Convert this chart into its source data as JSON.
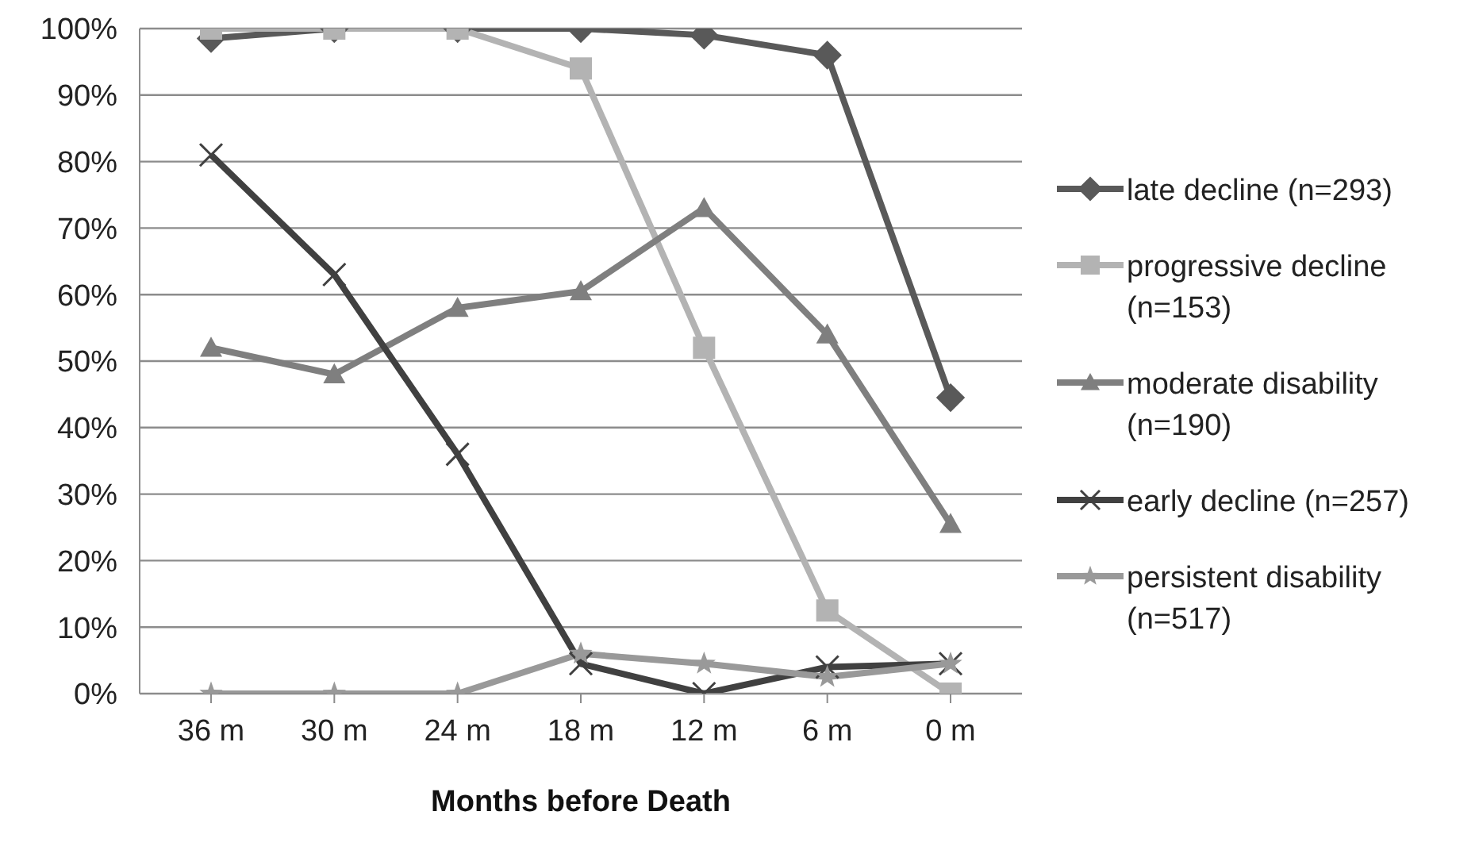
{
  "chart_data": {
    "type": "line",
    "xlabel": "Months before Death",
    "categories": [
      "36 m",
      "30 m",
      "24 m",
      "18 m",
      "12 m",
      "6 m",
      "0 m"
    ],
    "series": [
      {
        "name": "late decline (n=293)",
        "color": "#595959",
        "marker": "diamond",
        "values": [
          98.5,
          100,
          100,
          100,
          99,
          96,
          44.5
        ]
      },
      {
        "name": "progressive decline (n=153)",
        "color": "#b3b3b3",
        "marker": "square",
        "values": [
          100,
          100,
          100,
          94,
          52,
          12.5,
          0
        ]
      },
      {
        "name": "moderate disability (n=190)",
        "color": "#7f7f7f",
        "marker": "triangle",
        "values": [
          52,
          48,
          58,
          60.5,
          73,
          54,
          25.5
        ]
      },
      {
        "name": "early decline (n=257)",
        "color": "#404040",
        "marker": "cross",
        "values": [
          81,
          63,
          36,
          4.5,
          0,
          4,
          4.5
        ]
      },
      {
        "name": "persistent disability (n=517)",
        "color": "#999999",
        "marker": "star",
        "values": [
          0,
          0,
          0,
          6,
          4.5,
          2.5,
          4.5
        ]
      }
    ],
    "ylim": [
      0,
      100
    ],
    "yticks": [
      {
        "value": 0,
        "label": "0%"
      },
      {
        "value": 10,
        "label": "10%"
      },
      {
        "value": 20,
        "label": "20%"
      },
      {
        "value": 30,
        "label": "30%"
      },
      {
        "value": 40,
        "label": "40%"
      },
      {
        "value": 50,
        "label": "50%"
      },
      {
        "value": 60,
        "label": "60%"
      },
      {
        "value": 70,
        "label": "70%"
      },
      {
        "value": 80,
        "label": "80%"
      },
      {
        "value": 90,
        "label": "90%"
      },
      {
        "value": 100,
        "label": "100%"
      }
    ],
    "grid": "y",
    "legend": "right",
    "line_style": "solid"
  }
}
